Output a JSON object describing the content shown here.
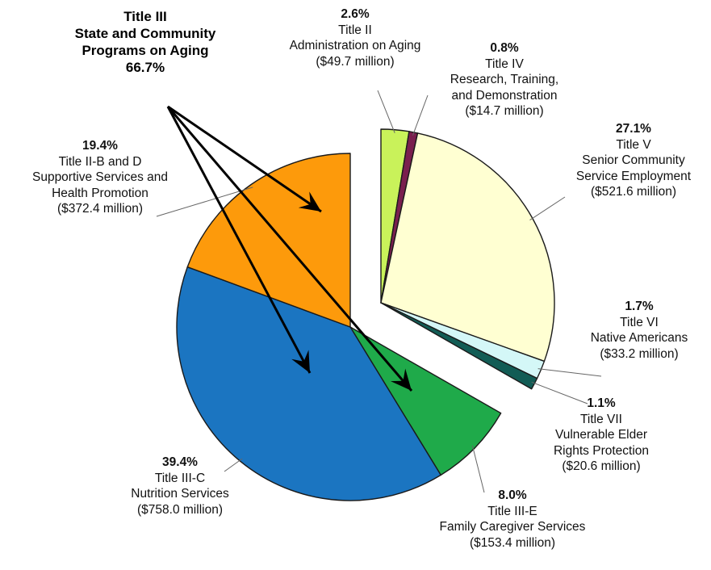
{
  "chart_data": {
    "type": "pie",
    "title": "",
    "callout": {
      "lines": [
        "Title III",
        "State and Community",
        "Programs on Aging"
      ],
      "percent": "66.7%"
    },
    "slices": [
      {
        "percent": "2.6%",
        "value": 2.6,
        "lines": [
          "Title II",
          "Administration on Aging",
          "($49.7 million)"
        ],
        "color": "#c9f25a",
        "exploded": true
      },
      {
        "percent": "0.8%",
        "value": 0.8,
        "lines": [
          "Title IV",
          "Research, Training,",
          "and Demonstration",
          "($14.7 million)"
        ],
        "color": "#7a1f4e",
        "exploded": true
      },
      {
        "percent": "27.1%",
        "value": 27.1,
        "lines": [
          "Title V",
          "Senior Community",
          "Service Employment",
          "($521.6 million)"
        ],
        "color": "#ffffd2",
        "exploded": true
      },
      {
        "percent": "1.7%",
        "value": 1.7,
        "lines": [
          "Title VI",
          "Native Americans",
          "($33.2 million)"
        ],
        "color": "#d4f7f7",
        "exploded": true
      },
      {
        "percent": "1.1%",
        "value": 1.1,
        "lines": [
          "Title VII",
          "Vulnerable Elder",
          "Rights Protection",
          "($20.6 million)"
        ],
        "color": "#125c55",
        "exploded": true
      },
      {
        "percent": "8.0%",
        "value": 8.0,
        "lines": [
          "Title III-E",
          "Family Caregiver Services",
          "($153.4 million)"
        ],
        "color": "#1faa4a",
        "exploded": false
      },
      {
        "percent": "39.4%",
        "value": 39.4,
        "lines": [
          "Title III-C",
          "Nutrition Services",
          "($758.0 million)"
        ],
        "color": "#1b75c1",
        "exploded": false
      },
      {
        "percent": "19.4%",
        "value": 19.4,
        "lines": [
          "Title II-B and D",
          "Supportive Services and",
          "Health Promotion",
          "($372.4 million)"
        ],
        "color": "#fd9a0b",
        "exploded": false
      }
    ]
  }
}
